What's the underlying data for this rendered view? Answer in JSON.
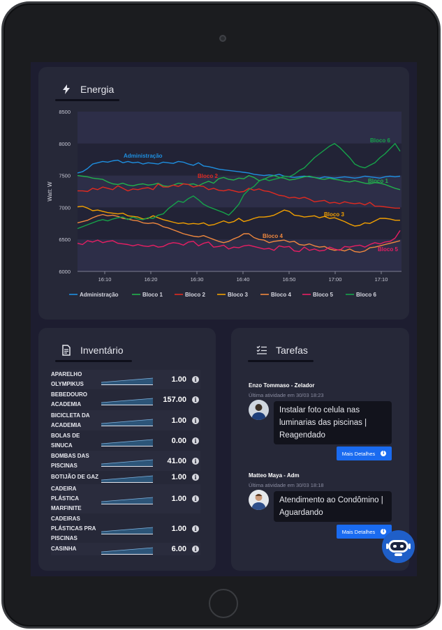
{
  "energia": {
    "title": "Energia",
    "icon": "bolt-icon"
  },
  "chart_data": {
    "type": "line",
    "ylabel": "Watt: W",
    "xlabel": "",
    "ylim": [
      6000,
      8500
    ],
    "yticks": [
      "8500",
      "8000",
      "7500",
      "7000",
      "6500",
      "6000"
    ],
    "xticks": [
      "16:10",
      "16:20",
      "16:30",
      "16:40",
      "16:50",
      "17:00",
      "17:10"
    ],
    "legend_position": "bottom",
    "series": [
      {
        "name": "Administração",
        "label": "Administração",
        "color": "#1e8fe0",
        "values": [
          7540,
          7560,
          7610,
          7680,
          7700,
          7720,
          7710,
          7730,
          7740,
          7700,
          7720,
          7700,
          7710,
          7680,
          7700,
          7690,
          7680,
          7710,
          7700,
          7690,
          7720,
          7710,
          7680,
          7660,
          7700,
          7650,
          7640,
          7620,
          7600,
          7590,
          7580,
          7570,
          7560,
          7550,
          7540,
          7520,
          7510,
          7500,
          7510,
          7500,
          7520,
          7490,
          7480,
          7470,
          7480,
          7490,
          7480,
          7470,
          7460,
          7480,
          7470,
          7460,
          7470,
          7480,
          7470,
          7460,
          7470,
          7490,
          7480,
          7470,
          7460,
          7480,
          7490,
          7480,
          7490
        ]
      },
      {
        "name": "Bloco 1",
        "label": "Bloco 1",
        "color": "#22b24c",
        "values": [
          7500,
          7490,
          7480,
          7460,
          7450,
          7440,
          7400,
          7370,
          7360,
          7380,
          7350,
          7340,
          7360,
          7370,
          7350,
          7360,
          7380,
          7340,
          7330,
          7350,
          7380,
          7370,
          7360,
          7370,
          7340,
          7380,
          7410,
          7380,
          7450,
          7470,
          7440,
          7430,
          7460,
          7450,
          7500,
          7470,
          7420,
          7440,
          7480,
          7500,
          7470,
          7460,
          7430,
          7440,
          7460,
          7480,
          7490,
          7470,
          7450,
          7440,
          7460,
          7440,
          7430,
          7410,
          7400,
          7420,
          7400,
          7380,
          7370,
          7390,
          7380,
          7360,
          7330,
          7300,
          7280
        ]
      },
      {
        "name": "Bloco 2",
        "label": "Bloco 2",
        "color": "#e02a20",
        "values": [
          7260,
          7260,
          7250,
          7300,
          7280,
          7320,
          7300,
          7280,
          7340,
          7300,
          7260,
          7290,
          7280,
          7300,
          7310,
          7280,
          7370,
          7320,
          7320,
          7350,
          7330,
          7370,
          7360,
          7320,
          7340,
          7330,
          7280,
          7300,
          7270,
          7260,
          7280,
          7260,
          7240,
          7250,
          7300,
          7270,
          7290,
          7260,
          7250,
          7220,
          7190,
          7180,
          7150,
          7160,
          7140,
          7160,
          7130,
          7090,
          7100,
          7110,
          7070,
          7080,
          7060,
          7090,
          7070,
          7060,
          7070,
          7040,
          7080,
          7020,
          7020,
          7010,
          7000,
          6990,
          6990
        ]
      },
      {
        "name": "Bloco 3",
        "label": "Bloco 3",
        "color": "#f2a000",
        "values": [
          7010,
          7020,
          6990,
          6950,
          6960,
          6940,
          6920,
          6910,
          6900,
          6910,
          6870,
          6860,
          6850,
          6820,
          6830,
          6870,
          6840,
          6810,
          6790,
          6770,
          6750,
          6760,
          6740,
          6750,
          6740,
          6760,
          6720,
          6730,
          6760,
          6790,
          6760,
          6780,
          6830,
          6780,
          6800,
          6830,
          6850,
          6850,
          6860,
          6880,
          6920,
          6960,
          6940,
          6880,
          6870,
          6850,
          6860,
          6870,
          6840,
          6860,
          6830,
          6840,
          6810,
          6780,
          6740,
          6710,
          6720,
          6760,
          6750,
          6790,
          6830,
          6830,
          6820,
          6800,
          6800
        ]
      },
      {
        "name": "Bloco 4",
        "label": "Bloco 4",
        "color": "#f0883e",
        "values": [
          6760,
          6780,
          6800,
          6840,
          6870,
          6890,
          6870,
          6880,
          6860,
          6830,
          6820,
          6800,
          6790,
          6760,
          6750,
          6760,
          6740,
          6700,
          6680,
          6650,
          6620,
          6590,
          6570,
          6550,
          6540,
          6560,
          6530,
          6500,
          6470,
          6450,
          6470,
          6510,
          6540,
          6590,
          6590,
          6530,
          6500,
          6490,
          6450,
          6470,
          6480,
          6490,
          6460,
          6470,
          6420,
          6410,
          6430,
          6400,
          6380,
          6390,
          6350,
          6330,
          6340,
          6320,
          6350,
          6310,
          6300,
          6320,
          6370,
          6380,
          6400,
          6420,
          6440,
          6460,
          6480
        ]
      },
      {
        "name": "Bloco 5",
        "label": "Bloco 5",
        "color": "#e81e63",
        "values": [
          6440,
          6420,
          6480,
          6460,
          6490,
          6450,
          6470,
          6480,
          6440,
          6430,
          6420,
          6400,
          6420,
          6400,
          6390,
          6410,
          6380,
          6390,
          6430,
          6450,
          6440,
          6410,
          6460,
          6470,
          6400,
          6440,
          6460,
          6380,
          6390,
          6410,
          6350,
          6380,
          6370,
          6400,
          6410,
          6390,
          6370,
          6350,
          6360,
          6330,
          6400,
          6380,
          6390,
          6320,
          6310,
          6380,
          6330,
          6350,
          6320,
          6330,
          6380,
          6350,
          6330,
          6390,
          6380,
          6400,
          6410,
          6380,
          6420,
          6450,
          6430,
          6460,
          6470,
          6520,
          6640
        ]
      },
      {
        "name": "Bloco 6",
        "label": "Bloco 6",
        "color": "#16a34a",
        "values": [
          6670,
          6700,
          6730,
          6760,
          6790,
          6810,
          6790,
          6820,
          6840,
          6850,
          6810,
          6850,
          6820,
          6810,
          6840,
          6830,
          6880,
          6900,
          6980,
          7040,
          7100,
          7080,
          7140,
          7180,
          7120,
          7050,
          7010,
          6980,
          6950,
          6920,
          6880,
          6960,
          7050,
          7200,
          7280,
          7330,
          7410,
          7450,
          7420,
          7440,
          7460,
          7490,
          7480,
          7520,
          7580,
          7620,
          7700,
          7780,
          7840,
          7900,
          7960,
          8000,
          7940,
          7860,
          7780,
          7680,
          7640,
          7620,
          7660,
          7700,
          7780,
          7840,
          7920,
          8000,
          7880
        ]
      }
    ]
  },
  "inventario": {
    "title": "Inventário",
    "icon": "document-icon",
    "items": [
      {
        "name": "APARELHO OLYMPIKUS",
        "value": "1.00"
      },
      {
        "name": "BEBEDOURO ACADEMIA",
        "value": "157.00"
      },
      {
        "name": "BICICLETA DA ACADEMIA",
        "value": "1.00"
      },
      {
        "name": "BOLAS DE SINUCA",
        "value": "0.00"
      },
      {
        "name": "BOMBAS DAS PISCINAS",
        "value": "41.00"
      },
      {
        "name": "BOTIJÃO DE GAZ",
        "value": "1.00"
      },
      {
        "name": "CADEIRA PLÁSTICA MARFINITE",
        "value": "1.00"
      },
      {
        "name": "CADEIRAS PLÁSTICAS PRA PISCINAS",
        "value": "1.00"
      },
      {
        "name": "CASINHA",
        "value": "6.00"
      }
    ]
  },
  "tarefas": {
    "title": "Tarefas",
    "icon": "checklist-icon",
    "items": [
      {
        "user": "Enzo Tommaso - Zelador",
        "time": "Última atividade em 30/03 18:23",
        "text": "Instalar foto celula nas luminarias das piscinas | Reagendado",
        "button": "Mais Detalhes"
      },
      {
        "user": "Matteo Maya - Adm",
        "time": "Última atividade em 30/03 18:18",
        "text": "Atendimento ao Condômino | Aguardando",
        "button": "Mais Detalhes"
      }
    ]
  }
}
